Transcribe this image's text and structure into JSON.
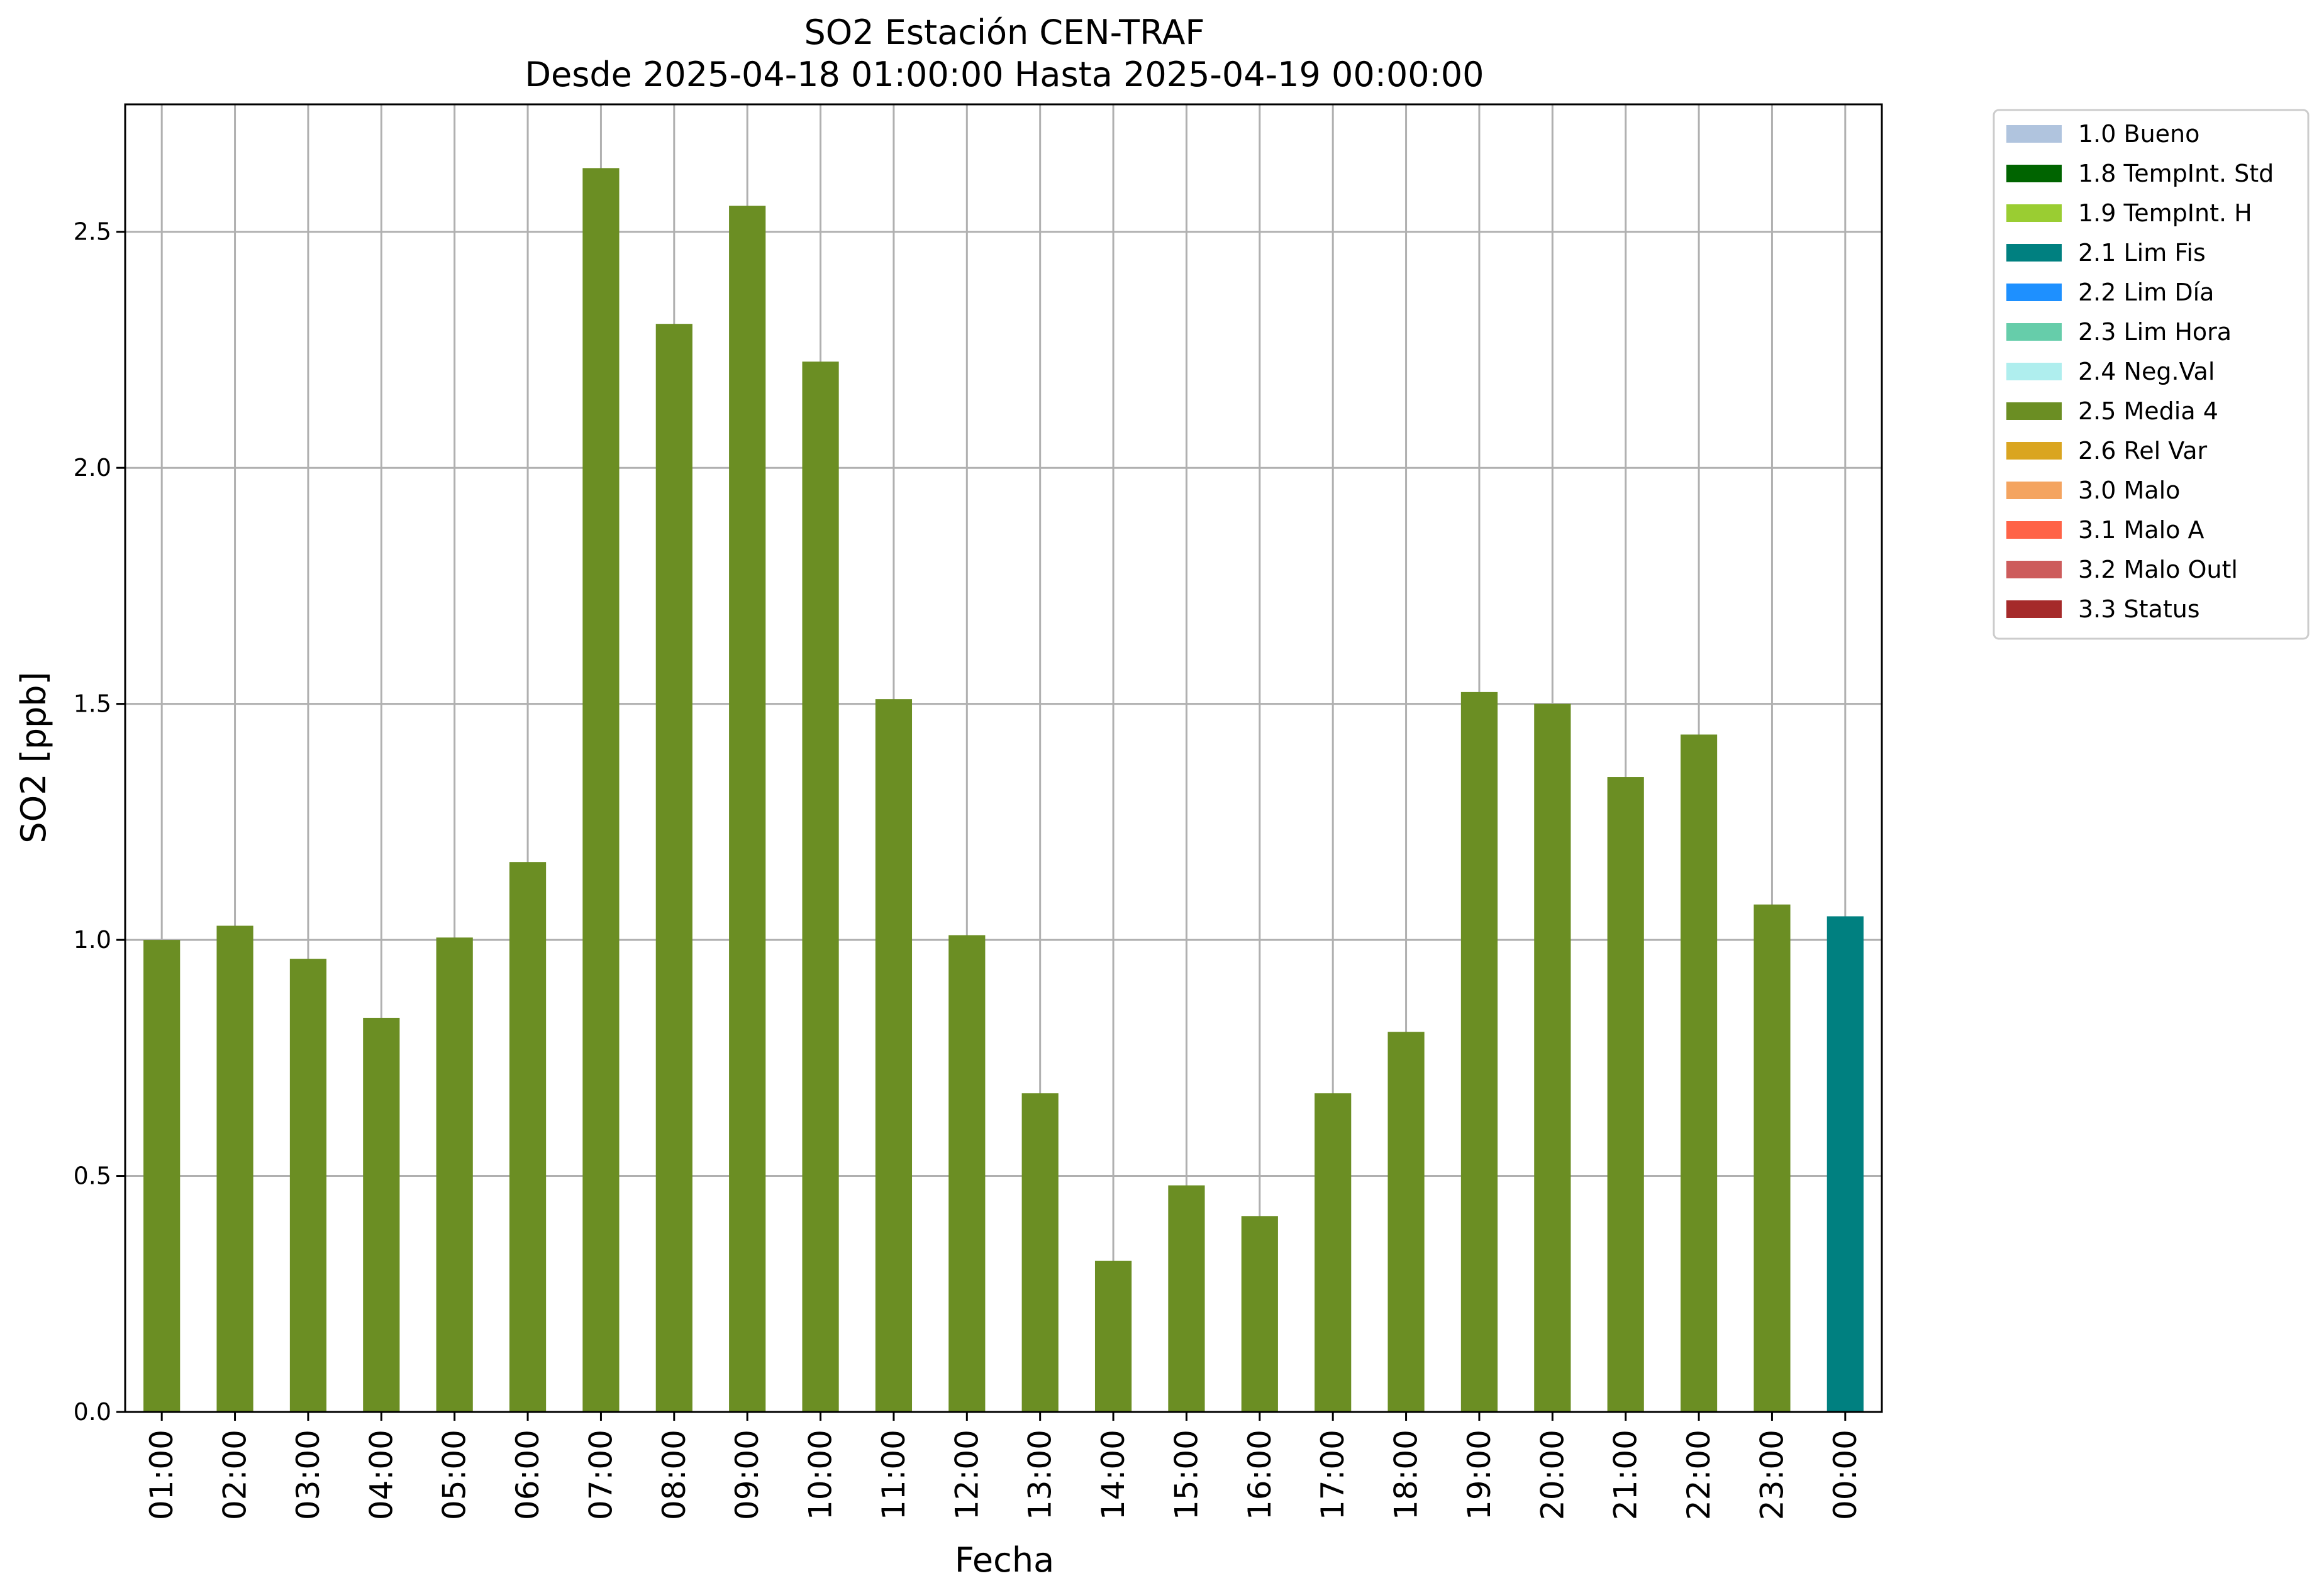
{
  "chart_data": {
    "type": "bar",
    "title": "SO2 Estación CEN-TRAF",
    "subtitle": "Desde 2025-04-18 01:00:00 Hasta 2025-04-19 00:00:00",
    "xlabel": "Fecha",
    "ylabel": "SO2 [ppb]",
    "ylim": [
      0,
      2.77
    ],
    "yticks": [
      "0.0",
      "0.5",
      "1.0",
      "1.5",
      "2.0",
      "2.5"
    ],
    "grid": true,
    "legend_position": "outside-top-right",
    "categories": [
      "01:00",
      "02:00",
      "03:00",
      "04:00",
      "05:00",
      "06:00",
      "07:00",
      "08:00",
      "09:00",
      "10:00",
      "11:00",
      "12:00",
      "13:00",
      "14:00",
      "15:00",
      "16:00",
      "17:00",
      "18:00",
      "19:00",
      "20:00",
      "21:00",
      "22:00",
      "23:00",
      "00:00"
    ],
    "values": [
      1.0,
      1.03,
      0.96,
      0.835,
      1.005,
      1.165,
      2.635,
      2.305,
      2.555,
      2.225,
      1.51,
      1.01,
      0.675,
      0.32,
      0.48,
      0.415,
      0.675,
      0.805,
      1.525,
      1.5,
      1.345,
      1.435,
      1.075,
      1.05
    ],
    "bar_flags": [
      "2.5 Media 4",
      "2.5 Media 4",
      "2.5 Media 4",
      "2.5 Media 4",
      "2.5 Media 4",
      "2.5 Media 4",
      "2.5 Media 4",
      "2.5 Media 4",
      "2.5 Media 4",
      "2.5 Media 4",
      "2.5 Media 4",
      "2.5 Media 4",
      "2.5 Media 4",
      "2.5 Media 4",
      "2.5 Media 4",
      "2.5 Media 4",
      "2.5 Media 4",
      "2.5 Media 4",
      "2.5 Media 4",
      "2.5 Media 4",
      "2.5 Media 4",
      "2.5 Media 4",
      "2.5 Media 4",
      "2.1 Lim Fis"
    ],
    "legend": [
      {
        "label": "1.0 Bueno",
        "color": "#b0c4de"
      },
      {
        "label": "1.8 TempInt. Std",
        "color": "#006400"
      },
      {
        "label": "1.9 TempInt. H",
        "color": "#9acd32"
      },
      {
        "label": "2.1 Lim Fis",
        "color": "#008080"
      },
      {
        "label": "2.2 Lim Día",
        "color": "#1e90ff"
      },
      {
        "label": "2.3 Lim Hora",
        "color": "#66cdaa"
      },
      {
        "label": "2.4 Neg.Val",
        "color": "#afeeee"
      },
      {
        "label": "2.5 Media 4",
        "color": "#6b8e23"
      },
      {
        "label": "2.6 Rel Var",
        "color": "#daa520"
      },
      {
        "label": "3.0 Malo",
        "color": "#f4a460"
      },
      {
        "label": "3.1 Malo A",
        "color": "#ff6347"
      },
      {
        "label": "3.2 Malo Outl",
        "color": "#cd5c5c"
      },
      {
        "label": "3.3 Status",
        "color": "#a52a2a"
      }
    ]
  }
}
